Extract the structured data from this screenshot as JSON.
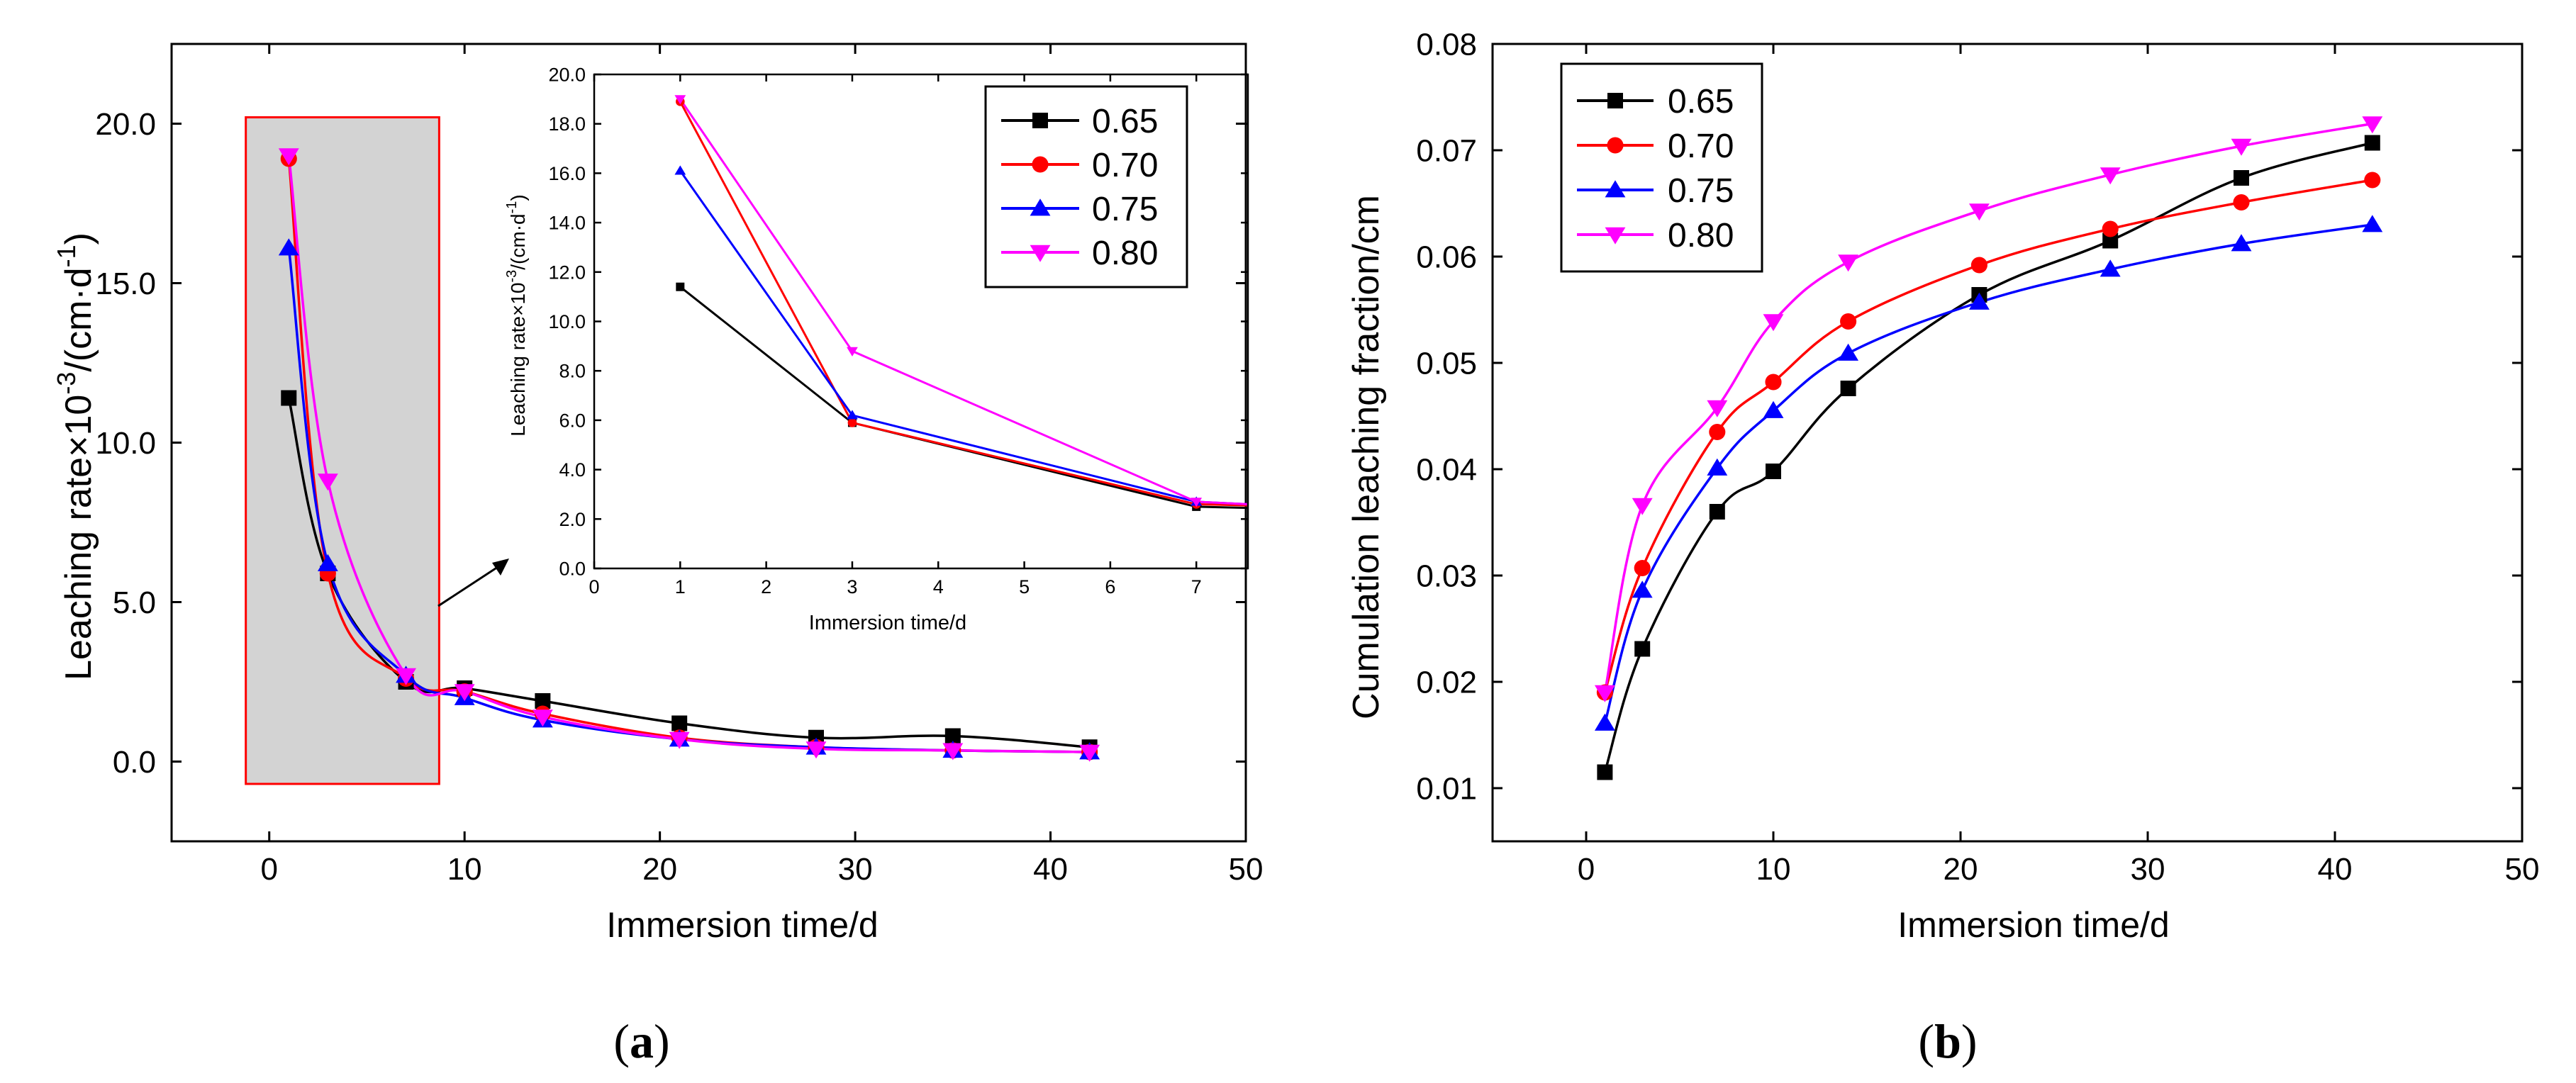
{
  "colors": {
    "0.65": "#000000",
    "0.70": "#ff0000",
    "0.75": "#0000ff",
    "0.80": "#ff00ff",
    "highlight_fill": "#d3d3d3",
    "highlight_border": "#ff0000"
  },
  "panels": {
    "a": {
      "label_open": "(",
      "label_letter": "a",
      "label_close": ")"
    },
    "b": {
      "label_open": "(",
      "label_letter": "b",
      "label_close": ")"
    }
  },
  "chart_data": [
    {
      "id": "a",
      "type": "line",
      "xlabel": "Immersion time/d",
      "ylabel": {
        "base": "Leaching rate×10",
        "exp1": "-3",
        "mid": "/(cm·d",
        "exp2": "-1",
        "tail": ")"
      },
      "xlim": [
        -5,
        50
      ],
      "ylim": [
        -2.5,
        22.5
      ],
      "xticks": [
        0,
        10,
        20,
        30,
        40,
        50
      ],
      "yticks": [
        0.0,
        5.0,
        10.0,
        15.0,
        20.0
      ],
      "ytick_labels": [
        "0.0",
        "5.0",
        "10.0",
        "15.0",
        "20.0"
      ],
      "grid": false,
      "legend": "top-right",
      "highlight": {
        "x": [
          -1.2,
          8.7
        ],
        "y": [
          -0.7,
          20.2
        ]
      },
      "x": [
        1,
        3,
        7,
        10,
        14,
        21,
        28,
        35,
        42
      ],
      "series": [
        {
          "name": "0.65",
          "marker": "square",
          "values": [
            11.4,
            5.9,
            2.5,
            2.3,
            1.9,
            1.2,
            0.75,
            0.8,
            0.45
          ]
        },
        {
          "name": "0.70",
          "marker": "circle",
          "values": [
            18.9,
            5.9,
            2.6,
            2.2,
            1.5,
            0.75,
            0.45,
            0.35,
            0.3
          ]
        },
        {
          "name": "0.75",
          "marker": "triangle-up",
          "values": [
            16.1,
            6.2,
            2.7,
            2.0,
            1.3,
            0.7,
            0.45,
            0.35,
            0.3
          ]
        },
        {
          "name": "0.80",
          "marker": "triangle-down",
          "values": [
            19.0,
            8.8,
            2.7,
            2.2,
            1.4,
            0.7,
            0.4,
            0.35,
            0.3
          ]
        }
      ],
      "inset": {
        "xlabel": "Immersion time/d",
        "ylabel": {
          "base": "Leaching rate×10",
          "exp1": "-3",
          "mid": "/(cm·d",
          "exp2": "-1",
          "tail": ")"
        },
        "xlim": [
          0,
          7.6
        ],
        "ylim": [
          0,
          20
        ],
        "xticks": [
          0,
          1,
          2,
          3,
          4,
          5,
          6,
          7
        ],
        "yticks": [
          0,
          2,
          4,
          6,
          8,
          10,
          12,
          14,
          16,
          18,
          20
        ],
        "ytick_labels": [
          "0.0",
          "2.0",
          "4.0",
          "6.0",
          "8.0",
          "10.0",
          "12.0",
          "14.0",
          "16.0",
          "18.0",
          "20.0"
        ],
        "x": [
          1,
          3,
          7,
          7.6
        ],
        "series": [
          {
            "name": "0.65",
            "values": [
              11.4,
              5.9,
              2.5,
              2.45
            ]
          },
          {
            "name": "0.70",
            "values": [
              18.9,
              5.9,
              2.6,
              2.55
            ]
          },
          {
            "name": "0.75",
            "values": [
              16.1,
              6.2,
              2.7,
              2.6
            ]
          },
          {
            "name": "0.80",
            "values": [
              19.0,
              8.8,
              2.7,
              2.6
            ]
          }
        ]
      }
    },
    {
      "id": "b",
      "type": "line",
      "xlabel": "Immersion time/d",
      "ylabel": "Cumulation leaching fraction/cm",
      "xlim": [
        -5,
        50
      ],
      "ylim": [
        0.005,
        0.08
      ],
      "xticks": [
        0,
        10,
        20,
        30,
        40,
        50
      ],
      "yticks": [
        0.01,
        0.02,
        0.03,
        0.04,
        0.05,
        0.06,
        0.07,
        0.08
      ],
      "ytick_labels": [
        "0.01",
        "0.02",
        "0.03",
        "0.04",
        "0.05",
        "0.06",
        "0.07",
        "0.08"
      ],
      "grid": false,
      "legend": "top-left",
      "x": [
        1,
        3,
        7,
        10,
        14,
        21,
        28,
        35,
        42
      ],
      "series": [
        {
          "name": "0.65",
          "marker": "square",
          "values": [
            0.0115,
            0.0231,
            0.036,
            0.0398,
            0.0476,
            0.0564,
            0.0615,
            0.0674,
            0.0707
          ]
        },
        {
          "name": "0.70",
          "marker": "circle",
          "values": [
            0.019,
            0.0307,
            0.0435,
            0.0482,
            0.0539,
            0.0592,
            0.0626,
            0.0651,
            0.0672
          ]
        },
        {
          "name": "0.75",
          "marker": "triangle-up",
          "values": [
            0.0161,
            0.0286,
            0.0401,
            0.0455,
            0.0509,
            0.0557,
            0.0588,
            0.0612,
            0.063
          ]
        },
        {
          "name": "0.80",
          "marker": "triangle-down",
          "values": [
            0.019,
            0.0366,
            0.0458,
            0.0539,
            0.0595,
            0.0643,
            0.0677,
            0.0704,
            0.0725
          ]
        }
      ]
    }
  ]
}
